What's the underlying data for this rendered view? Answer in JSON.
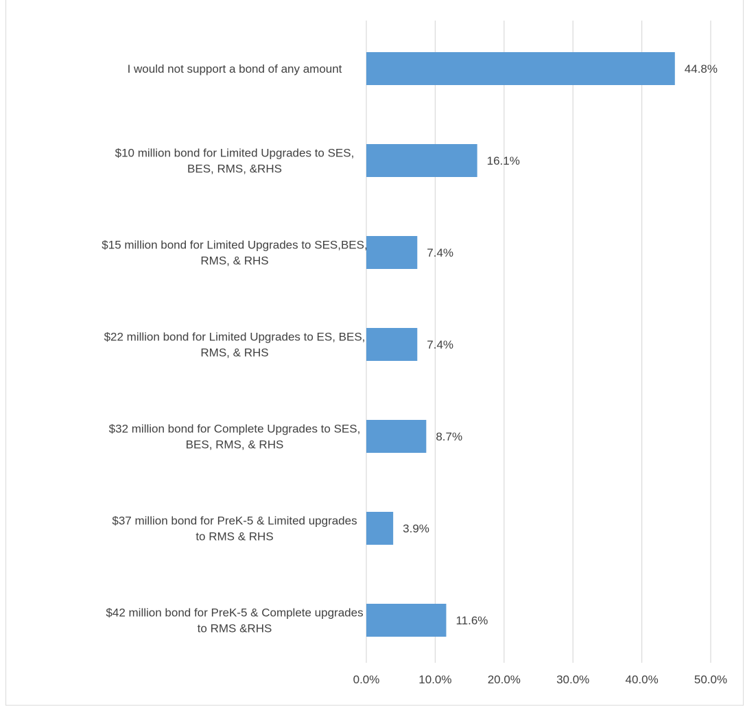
{
  "chart_data": {
    "type": "bar",
    "orientation": "horizontal",
    "categories": [
      [
        "I would not support a bond of any amount"
      ],
      [
        "$10 million bond for Limited Upgrades to SES,",
        "BES, RMS, &RHS"
      ],
      [
        "$15 million bond for Limited Upgrades to SES,BES,",
        "RMS, & RHS"
      ],
      [
        "$22 million bond for Limited Upgrades to ES, BES,",
        "RMS, & RHS"
      ],
      [
        "$32 million bond for Complete Upgrades to SES,",
        "BES, RMS, & RHS"
      ],
      [
        "$37 million bond for PreK-5 & Limited upgrades",
        "to RMS & RHS"
      ],
      [
        "$42 million bond for PreK-5 & Complete upgrades",
        "to RMS &RHS"
      ]
    ],
    "values": [
      44.8,
      16.1,
      7.4,
      7.4,
      8.7,
      3.9,
      11.6
    ],
    "data_labels": [
      "44.8%",
      "16.1%",
      "7.4%",
      "7.4%",
      "8.7%",
      "3.9%",
      "11.6%"
    ],
    "x_ticks": [
      "0.0%",
      "10.0%",
      "20.0%",
      "30.0%",
      "40.0%",
      "50.0%"
    ],
    "xlim": [
      0,
      50
    ],
    "grid": "vertical",
    "legend": "none",
    "colors": {
      "bar": "#5b9bd5",
      "grid": "#d9d9d9",
      "text": "#404040",
      "border": "#d9d9d9"
    }
  }
}
